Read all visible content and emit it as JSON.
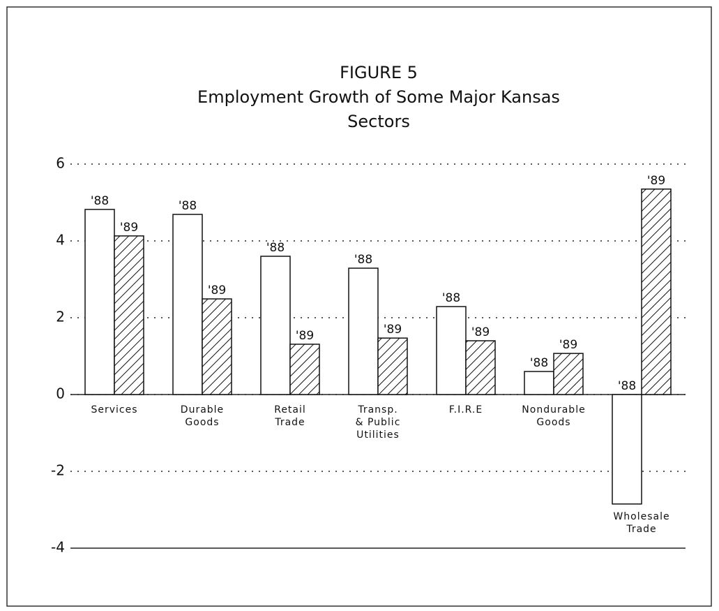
{
  "chart_data": {
    "type": "bar",
    "title": "FIGURE 5",
    "subtitle": "Employment Growth of Some Major Kansas Sectors",
    "categories": [
      "Services",
      "Durable Goods",
      "Retail Trade",
      "Transp. & Public Utilities",
      "F.I.R.E",
      "Nondurable Goods",
      "Wholesale Trade"
    ],
    "series": [
      {
        "name": "'88",
        "color": "#ffffff",
        "hatch": false,
        "values": [
          4.82,
          4.69,
          3.6,
          3.29,
          2.29,
          0.6,
          -2.85
        ]
      },
      {
        "name": "'89",
        "color": "#ffffff",
        "hatch": true,
        "values": [
          4.13,
          2.49,
          1.31,
          1.47,
          1.4,
          1.07,
          5.35
        ]
      }
    ],
    "ylim": [
      -4,
      6
    ],
    "yticks": [
      -4,
      -2,
      0,
      2,
      4,
      6
    ],
    "grid": true
  }
}
